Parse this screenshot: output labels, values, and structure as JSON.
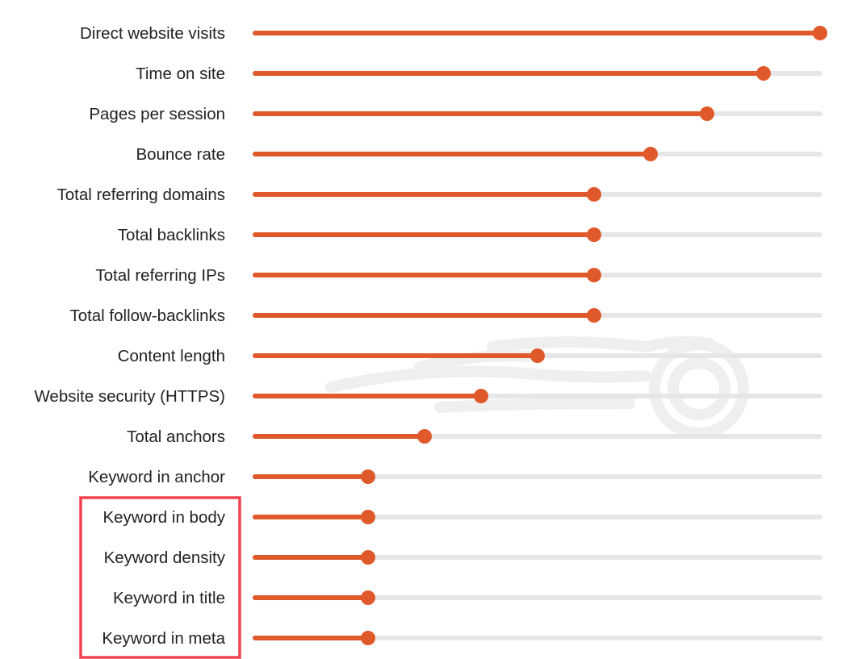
{
  "colors": {
    "accent": "#e0592a",
    "track": "#e6e6e6",
    "highlight": "#f0424f",
    "label": "#222222",
    "watermark": "#efefef"
  },
  "watermark": {
    "icon": "semrush-fireball-logo-icon"
  },
  "highlight": {
    "rows": [
      "Keyword in body",
      "Keyword density",
      "Keyword in title",
      "Keyword in meta"
    ]
  },
  "chart_data": {
    "type": "bar",
    "orientation": "horizontal",
    "style": "slider-lollipop",
    "title": "",
    "xlabel": "",
    "ylabel": "",
    "xlim": [
      0,
      1
    ],
    "grid": false,
    "legend": "none",
    "categories": [
      "Direct website visits",
      "Time on site",
      "Pages per session",
      "Bounce rate",
      "Total referring domains",
      "Total backlinks",
      "Total referring IPs",
      "Total follow-backlinks",
      "Content length",
      "Website security (HTTPS)",
      "Total anchors",
      "Keyword in anchor",
      "Keyword in body",
      "Keyword density",
      "Keyword in title",
      "Keyword in meta"
    ],
    "values": [
      1.0,
      0.9,
      0.8,
      0.7,
      0.6,
      0.6,
      0.6,
      0.6,
      0.5,
      0.4,
      0.3,
      0.2,
      0.2,
      0.2,
      0.2,
      0.2
    ]
  }
}
